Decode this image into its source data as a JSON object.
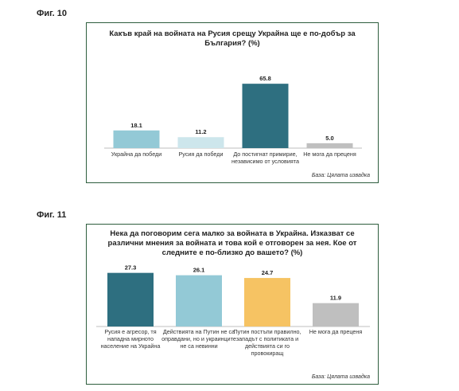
{
  "figures": [
    {
      "label": "Фиг. 10",
      "source": "База: Цялата извадка"
    },
    {
      "label": "Фиг. 11",
      "source": "База: Цялата извадка"
    }
  ],
  "chart_data": [
    {
      "type": "bar",
      "title": "Какъв край на войната на Русия срещу Украйна ще е по-добър за България? (%)",
      "title_lines": [
        "Какъв край на войната на Русия срещу Украйна ще е по-добър за",
        "България? (%)"
      ],
      "categories": [
        [
          "Украйна да победи"
        ],
        [
          "Русия да победи"
        ],
        [
          "До постигнат примирие,",
          "независимо от условията"
        ],
        [
          "Не мога да преценя"
        ]
      ],
      "values": [
        18.1,
        11.2,
        65.8,
        5.0
      ],
      "value_labels": [
        "18.1",
        "11.2",
        "65.8",
        "5.0"
      ],
      "colors": [
        "#93c9d6",
        "#cde6ec",
        "#2e6f80",
        "#bfbfbf"
      ],
      "ylim": [
        0,
        70
      ],
      "xlabel": "",
      "ylabel": "",
      "grid": false
    },
    {
      "type": "bar",
      "title": "Нека да поговорим сега малко за войната в Украйна. Изказват се различни мнения за войната и това кой е отговорен за нея. Кое от следните е по-близко до вашето? (%)",
      "title_lines": [
        "Нека да поговорим сега малко за войната в Украйна. Изказват се",
        "различни мнения за войната и това кой е отговорен за нея. Кое от",
        "следните е по-близко до вашето? (%)"
      ],
      "categories": [
        [
          "Русия е агресор, тя",
          "нападна мирното",
          "население на Украйна"
        ],
        [
          "Действията на Путин не са",
          "оправдани, но и украинците",
          "не са невинни"
        ],
        [
          "Путин постъпи правилно,",
          "западът с политиката и",
          "действията си го",
          "провокиращ"
        ],
        [
          "Не мога да преценя"
        ]
      ],
      "values": [
        27.3,
        26.1,
        24.7,
        11.9
      ],
      "value_labels": [
        "27.3",
        "26.1",
        "24.7",
        "11.9"
      ],
      "colors": [
        "#2e6f80",
        "#93c9d6",
        "#f6c363",
        "#bfbfbf"
      ],
      "ylim": [
        0,
        30
      ],
      "xlabel": "",
      "ylabel": "",
      "grid": false
    }
  ]
}
